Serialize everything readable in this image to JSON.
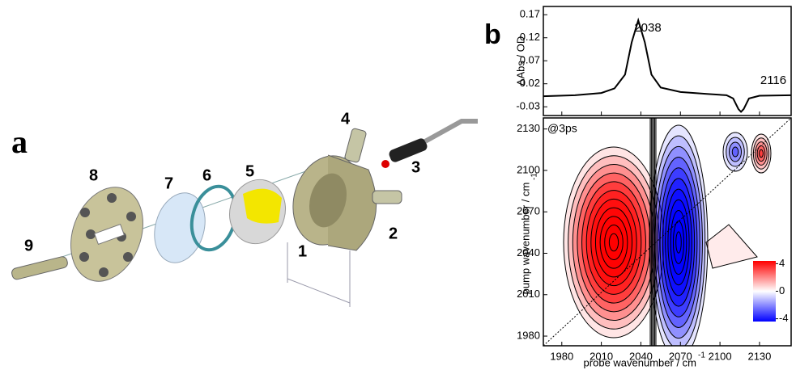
{
  "panel_a": {
    "label": "a",
    "parts": [
      "1",
      "2",
      "3",
      "4",
      "5",
      "6",
      "7",
      "8",
      "9"
    ]
  },
  "panel_b": {
    "label": "b"
  },
  "chart_data": [
    {
      "type": "line",
      "ylabel": "ΔAbs / OD",
      "color": "#000000",
      "x": [
        1966,
        1990,
        2010,
        2020,
        2028,
        2033,
        2038,
        2043,
        2048,
        2055,
        2070,
        2090,
        2105,
        2110,
        2114,
        2116,
        2118,
        2122,
        2130,
        2154
      ],
      "values": [
        -0.007,
        -0.005,
        0.0,
        0.01,
        0.04,
        0.11,
        0.158,
        0.11,
        0.04,
        0.012,
        0.002,
        -0.002,
        -0.005,
        -0.012,
        -0.035,
        -0.041,
        -0.035,
        -0.012,
        -0.006,
        -0.005
      ],
      "xlim": [
        1966,
        2154
      ],
      "ylim": [
        -0.049,
        0.188
      ],
      "yticks": [
        0.17,
        0.12,
        0.07,
        0.02,
        -0.03
      ],
      "annotations": [
        "2038",
        "2116"
      ]
    },
    {
      "type": "contour",
      "xlabel": "probe wavenumber / cm",
      "xlabel_superscript": "-1",
      "ylabel": "pump wavenumber / cm",
      "ylabel_superscript": "-1",
      "label": "@3ps",
      "xlim": [
        1966,
        2154
      ],
      "ylim": [
        1973,
        2138
      ],
      "xticks": [
        1980,
        2010,
        2040,
        2070,
        2100,
        2130
      ],
      "yticks": [
        1980,
        2010,
        2040,
        2070,
        2100,
        2130
      ],
      "colorbar": {
        "lim": [
          -4.4,
          4.4
        ],
        "ticks": [
          4,
          0,
          -4
        ],
        "colors": [
          "#0000ff",
          "#ffffff",
          "#ff0000"
        ]
      }
    }
  ]
}
